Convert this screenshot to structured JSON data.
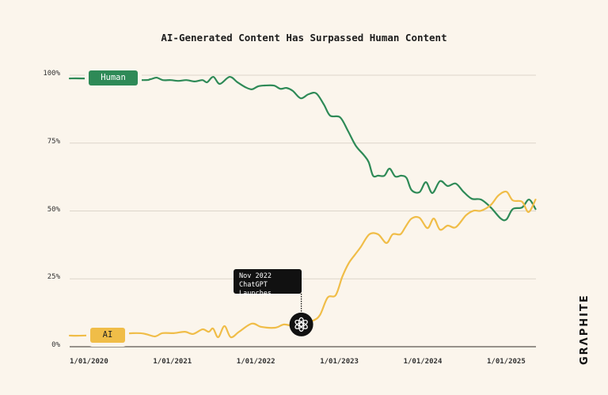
{
  "chart_data": {
    "type": "line",
    "title": "AI-Generated Content Has Surpassed Human Content",
    "xlabel": "",
    "ylabel": "",
    "x_tick_labels": [
      "1/01/2020",
      "1/01/2021",
      "1/01/2022",
      "1/01/2023",
      "1/01/2024",
      "1/01/2025"
    ],
    "y_tick_labels": [
      "100%",
      "75%",
      "50%",
      "25%",
      "0%"
    ],
    "ylim": [
      0,
      100
    ],
    "xlim": [
      "2020-01-01",
      "2025-08-01"
    ],
    "grid": "horizontal",
    "series": [
      {
        "name": "Human",
        "color": "#2e8a57",
        "points": [
          [
            "2020-01-01",
            98.8
          ],
          [
            "2020-03-02",
            98.8
          ],
          [
            "2020-11-08",
            98.2
          ],
          [
            "2020-12-19",
            98.5
          ],
          [
            "2021-01-16",
            99.1
          ],
          [
            "2021-02-13",
            98.2
          ],
          [
            "2021-03-17",
            98.2
          ],
          [
            "2021-04-21",
            97.9
          ],
          [
            "2021-05-25",
            98.2
          ],
          [
            "2021-07-01",
            97.7
          ],
          [
            "2021-08-04",
            98.2
          ],
          [
            "2021-08-24",
            97.4
          ],
          [
            "2021-09-21",
            99.4
          ],
          [
            "2021-10-19",
            96.8
          ],
          [
            "2021-12-01",
            99.4
          ],
          [
            "2022-01-05",
            97.4
          ],
          [
            "2022-02-09",
            95.6
          ],
          [
            "2022-03-07",
            94.8
          ],
          [
            "2022-04-04",
            95.9
          ],
          [
            "2022-05-01",
            96.2
          ],
          [
            "2022-06-12",
            96.2
          ],
          [
            "2022-07-10",
            95.0
          ],
          [
            "2022-08-07",
            95.3
          ],
          [
            "2022-09-04",
            94.2
          ],
          [
            "2022-10-08",
            91.5
          ],
          [
            "2022-11-12",
            93.0
          ],
          [
            "2022-12-15",
            93.3
          ],
          [
            "2023-01-18",
            89.2
          ],
          [
            "2023-02-15",
            85.1
          ],
          [
            "2023-03-28",
            84.5
          ],
          [
            "2023-05-01",
            79.6
          ],
          [
            "2023-06-05",
            74.1
          ],
          [
            "2023-07-10",
            70.6
          ],
          [
            "2023-08-01",
            68.0
          ],
          [
            "2023-08-20",
            63.0
          ],
          [
            "2023-09-12",
            63.0
          ],
          [
            "2023-10-09",
            63.0
          ],
          [
            "2023-11-01",
            65.6
          ],
          [
            "2023-11-26",
            62.7
          ],
          [
            "2023-12-23",
            63.0
          ],
          [
            "2024-01-15",
            62.1
          ],
          [
            "2024-02-06",
            57.7
          ],
          [
            "2024-03-10",
            56.9
          ],
          [
            "2024-04-08",
            60.6
          ],
          [
            "2024-05-06",
            56.6
          ],
          [
            "2024-06-09",
            61.0
          ],
          [
            "2024-07-12",
            59.2
          ],
          [
            "2024-08-17",
            60.1
          ],
          [
            "2024-09-20",
            57.1
          ],
          [
            "2024-10-26",
            54.5
          ],
          [
            "2024-12-06",
            54.2
          ],
          [
            "2025-01-18",
            51.3
          ],
          [
            "2025-03-01",
            47.2
          ],
          [
            "2025-03-26",
            46.9
          ],
          [
            "2025-04-23",
            50.7
          ],
          [
            "2025-06-03",
            51.3
          ],
          [
            "2025-07-03",
            54.2
          ],
          [
            "2025-08-01",
            50.7
          ]
        ]
      },
      {
        "name": "AI",
        "color": "#f0bd48",
        "points": [
          [
            "2020-01-01",
            4.1
          ],
          [
            "2020-03-02",
            4.1
          ],
          [
            "2020-10-04",
            5.0
          ],
          [
            "2020-11-27",
            4.7
          ],
          [
            "2021-01-09",
            3.8
          ],
          [
            "2021-02-12",
            5.0
          ],
          [
            "2021-04-01",
            5.0
          ],
          [
            "2021-05-18",
            5.5
          ],
          [
            "2021-06-24",
            4.7
          ],
          [
            "2021-08-04",
            6.4
          ],
          [
            "2021-09-01",
            5.5
          ],
          [
            "2021-09-20",
            6.7
          ],
          [
            "2021-10-12",
            3.5
          ],
          [
            "2021-11-09",
            7.6
          ],
          [
            "2021-12-06",
            3.5
          ],
          [
            "2022-01-12",
            5.5
          ],
          [
            "2022-03-07",
            8.5
          ],
          [
            "2022-04-18",
            7.3
          ],
          [
            "2022-06-18",
            7.0
          ],
          [
            "2022-07-26",
            8.2
          ],
          [
            "2022-09-04",
            7.6
          ],
          [
            "2022-10-07",
            7.9
          ],
          [
            "2022-12-01",
            9.6
          ],
          [
            "2023-01-01",
            11.7
          ],
          [
            "2023-02-04",
            18.1
          ],
          [
            "2023-03-09",
            19.0
          ],
          [
            "2023-04-07",
            25.7
          ],
          [
            "2023-05-04",
            30.6
          ],
          [
            "2023-06-01",
            33.8
          ],
          [
            "2023-06-27",
            36.7
          ],
          [
            "2023-08-04",
            41.4
          ],
          [
            "2023-09-12",
            41.4
          ],
          [
            "2023-10-18",
            38.2
          ],
          [
            "2023-11-15",
            41.4
          ],
          [
            "2023-12-18",
            41.4
          ],
          [
            "2024-01-09",
            44.0
          ],
          [
            "2024-02-06",
            47.2
          ],
          [
            "2024-03-10",
            47.5
          ],
          [
            "2024-04-15",
            43.7
          ],
          [
            "2024-05-12",
            47.2
          ],
          [
            "2024-06-09",
            43.1
          ],
          [
            "2024-07-12",
            44.6
          ],
          [
            "2024-08-17",
            44.0
          ],
          [
            "2024-10-01",
            48.4
          ],
          [
            "2024-11-04",
            50.1
          ],
          [
            "2024-12-06",
            50.1
          ],
          [
            "2025-01-18",
            52.2
          ],
          [
            "2025-02-21",
            55.7
          ],
          [
            "2025-03-26",
            57.1
          ],
          [
            "2025-04-23",
            53.9
          ],
          [
            "2025-06-03",
            53.4
          ],
          [
            "2025-07-01",
            49.6
          ],
          [
            "2025-08-01",
            54.2
          ]
        ]
      }
    ],
    "annotation": {
      "date": "2022-10-07",
      "value": 7.9,
      "line1": "Nov 2022",
      "line2": "ChatGPT Launches",
      "icon": "openai-logo-icon"
    }
  },
  "colors": {
    "background": "#fbf5ec",
    "human": "#2e8a57",
    "ai": "#f0bd48",
    "grid": "#dcd5ca",
    "axis": "#5a5650"
  },
  "branding": {
    "logo": "GRAPHITE"
  }
}
